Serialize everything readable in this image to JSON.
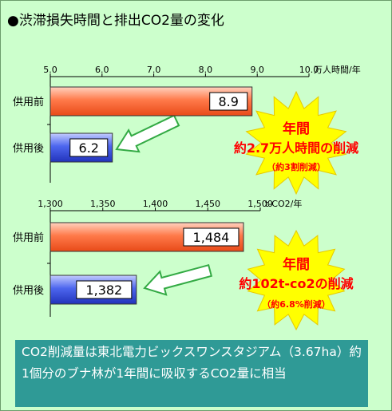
{
  "title": "●渋滞損失時間と排出CO2量の変化",
  "chart_data": [
    {
      "type": "bar",
      "orientation": "horizontal",
      "unit": "万人時間/年",
      "xlim": [
        5.0,
        10.0
      ],
      "ticks": [
        "5.0",
        "6.0",
        "7.0",
        "8.0",
        "9.0",
        "10.0"
      ],
      "categories": [
        "供用前",
        "供用後"
      ],
      "values": [
        8.9,
        6.2
      ],
      "value_labels": [
        "8.9",
        "6.2"
      ],
      "colors": [
        "#ff6633",
        "#3355dd"
      ],
      "callout": [
        "年間",
        "約2.7万人時間の削減",
        "（約3割削減）"
      ]
    },
    {
      "type": "bar",
      "orientation": "horizontal",
      "unit": "t-CO2/年",
      "xlim": [
        1300,
        1500
      ],
      "ticks": [
        "1,300",
        "1,350",
        "1,400",
        "1,450",
        "1,500"
      ],
      "categories": [
        "供用前",
        "供用後"
      ],
      "values": [
        1484,
        1382
      ],
      "value_labels": [
        "1,484",
        "1,382"
      ],
      "colors": [
        "#ff6633",
        "#3355dd"
      ],
      "callout": [
        "年間",
        "約102t-co2の削減",
        "（約6.8%削減）"
      ]
    }
  ],
  "note": "CO2削減量は東北電力ビックスワンスタジアム（3.67ha）約1個分のブナ林が1年間に吸収するCO2量に相当"
}
